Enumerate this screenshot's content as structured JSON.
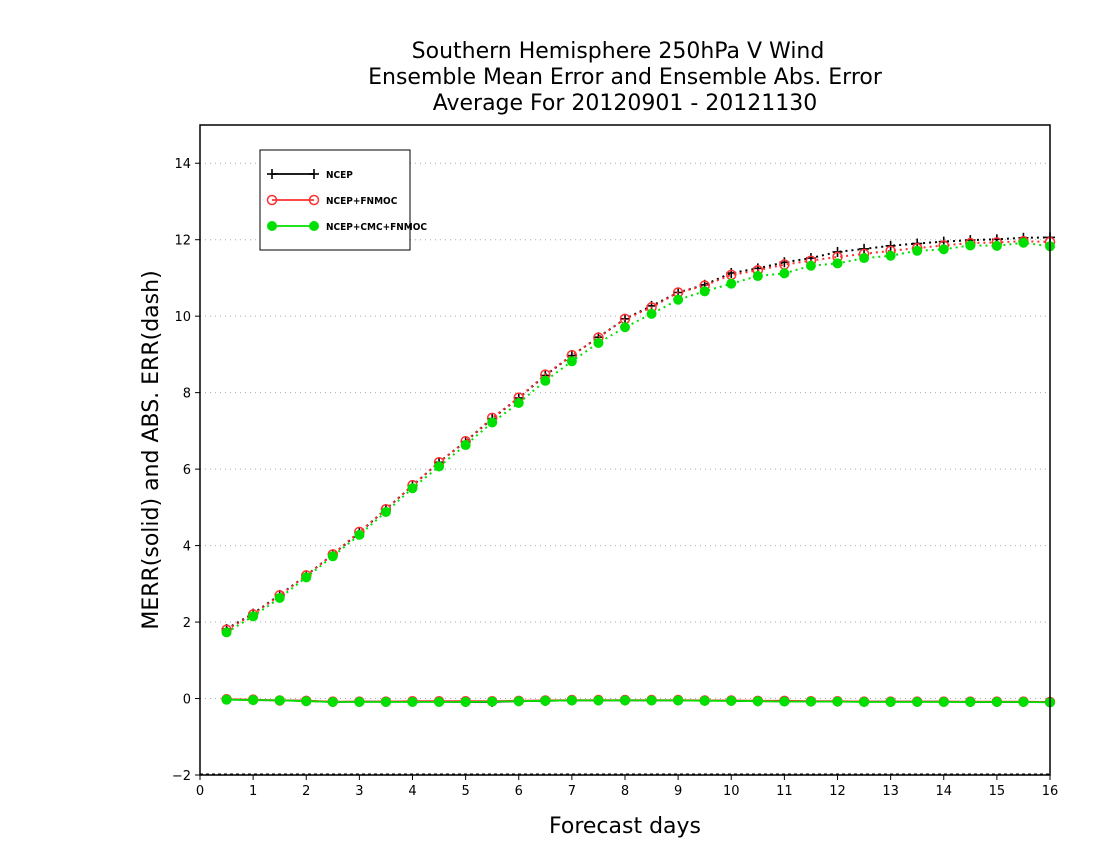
{
  "chart_data": {
    "type": "line",
    "title": [
      "Southern Hemisphere 250hPa V Wind",
      "Ensemble Mean Error and Ensemble Abs. Error",
      "Average For 20120901 - 20121130"
    ],
    "xlabel": "Forecast days",
    "ylabel": "MERR(solid) and ABS. ERR(dash)",
    "xlim": [
      0,
      16
    ],
    "ylim": [
      -2,
      15
    ],
    "xticks": [
      0,
      1,
      2,
      3,
      4,
      5,
      6,
      7,
      8,
      9,
      10,
      11,
      12,
      13,
      14,
      15,
      16
    ],
    "yticks": [
      -2,
      0,
      2,
      4,
      6,
      8,
      10,
      12,
      14
    ],
    "grid": "horizontal-dotted",
    "legend_position": "top-left",
    "x": [
      0.5,
      1,
      1.5,
      2,
      2.5,
      3,
      3.5,
      4,
      4.5,
      5,
      5.5,
      6,
      6.5,
      7,
      7.5,
      8,
      8.5,
      9,
      9.5,
      10,
      10.5,
      11,
      11.5,
      12,
      12.5,
      13,
      13.5,
      14,
      14.5,
      15,
      15.5,
      16
    ],
    "series": [
      {
        "name": "NCEP",
        "color": "#000000",
        "marker": "plus",
        "abs_err": [
          1.82,
          2.22,
          2.71,
          3.22,
          3.77,
          4.34,
          4.95,
          5.57,
          6.18,
          6.72,
          7.32,
          7.86,
          8.45,
          8.97,
          9.45,
          9.93,
          10.27,
          10.62,
          10.82,
          11.13,
          11.25,
          11.41,
          11.52,
          11.68,
          11.76,
          11.84,
          11.9,
          11.95,
          11.99,
          12.01,
          12.05,
          12.06
        ],
        "mean_err": [
          -0.02,
          -0.04,
          -0.05,
          -0.06,
          -0.09,
          -0.08,
          -0.08,
          -0.08,
          -0.08,
          -0.09,
          -0.09,
          -0.07,
          -0.06,
          -0.05,
          -0.05,
          -0.05,
          -0.05,
          -0.05,
          -0.05,
          -0.06,
          -0.07,
          -0.07,
          -0.08,
          -0.08,
          -0.08,
          -0.08,
          -0.08,
          -0.08,
          -0.09,
          -0.09,
          -0.09,
          -0.09
        ]
      },
      {
        "name": "NCEP+FNMOC",
        "color": "#ff3030",
        "marker": "open-circle",
        "abs_err": [
          1.8,
          2.2,
          2.7,
          3.22,
          3.77,
          4.36,
          4.95,
          5.58,
          6.18,
          6.73,
          7.34,
          7.87,
          8.47,
          8.98,
          9.44,
          9.93,
          10.23,
          10.62,
          10.8,
          11.08,
          11.2,
          11.35,
          11.45,
          11.55,
          11.63,
          11.71,
          11.78,
          11.85,
          11.91,
          11.93,
          11.96,
          11.94
        ],
        "mean_err": [
          -0.02,
          -0.03,
          -0.05,
          -0.06,
          -0.08,
          -0.08,
          -0.08,
          -0.07,
          -0.07,
          -0.07,
          -0.07,
          -0.06,
          -0.05,
          -0.04,
          -0.04,
          -0.04,
          -0.04,
          -0.04,
          -0.05,
          -0.05,
          -0.06,
          -0.06,
          -0.07,
          -0.07,
          -0.08,
          -0.08,
          -0.08,
          -0.08,
          -0.08,
          -0.08,
          -0.08,
          -0.09
        ]
      },
      {
        "name": "NCEP+CMC+FNMOC",
        "color": "#00e000",
        "marker": "filled-circle",
        "abs_err": [
          1.73,
          2.15,
          2.63,
          3.17,
          3.72,
          4.28,
          4.88,
          5.5,
          6.07,
          6.63,
          7.22,
          7.73,
          8.31,
          8.82,
          9.3,
          9.71,
          10.06,
          10.43,
          10.65,
          10.85,
          11.05,
          11.12,
          11.32,
          11.38,
          11.52,
          11.58,
          11.71,
          11.75,
          11.85,
          11.84,
          11.92,
          11.83
        ],
        "mean_err": [
          -0.03,
          -0.04,
          -0.05,
          -0.07,
          -0.09,
          -0.09,
          -0.09,
          -0.09,
          -0.09,
          -0.09,
          -0.08,
          -0.07,
          -0.06,
          -0.05,
          -0.05,
          -0.05,
          -0.05,
          -0.05,
          -0.06,
          -0.06,
          -0.07,
          -0.08,
          -0.08,
          -0.08,
          -0.09,
          -0.09,
          -0.09,
          -0.09,
          -0.09,
          -0.09,
          -0.09,
          -0.1
        ]
      }
    ]
  }
}
